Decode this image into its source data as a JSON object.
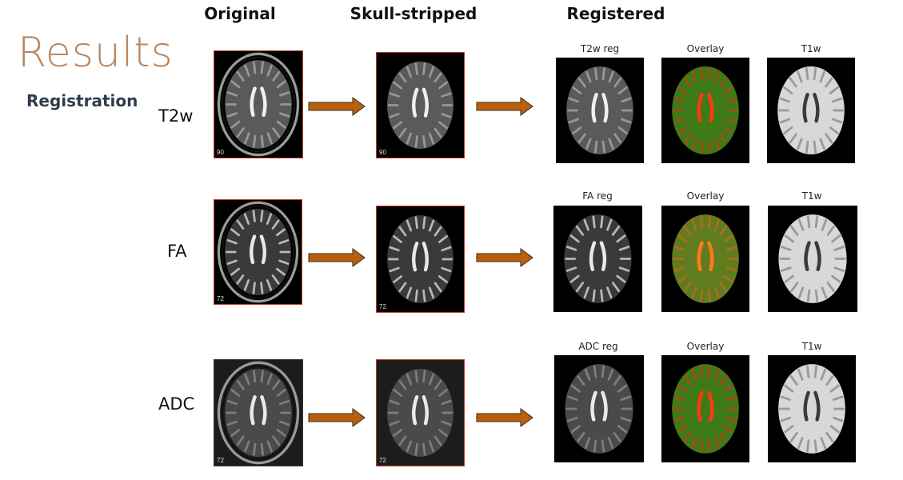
{
  "slide": {
    "title": "Results",
    "subtitle": "Registration",
    "columns": [
      "Original",
      "Skull-stripped",
      "Registered"
    ],
    "rows": [
      {
        "label": "T2w",
        "original_slice": "90",
        "stripped_slice": "90",
        "panels": [
          "T2w reg",
          "Overlay",
          "T1w"
        ]
      },
      {
        "label": "FA",
        "original_slice": "72",
        "stripped_slice": "72",
        "panels": [
          "FA reg",
          "Overlay",
          "T1w"
        ]
      },
      {
        "label": "ADC",
        "original_slice": "72",
        "stripped_slice": "72",
        "panels": [
          "ADC reg",
          "Overlay",
          "T1w"
        ]
      }
    ],
    "colors": {
      "title": "#b98660",
      "subtitle": "#2e3d4c",
      "arrow": "#b8600e",
      "image_border": "#c0392b"
    }
  }
}
